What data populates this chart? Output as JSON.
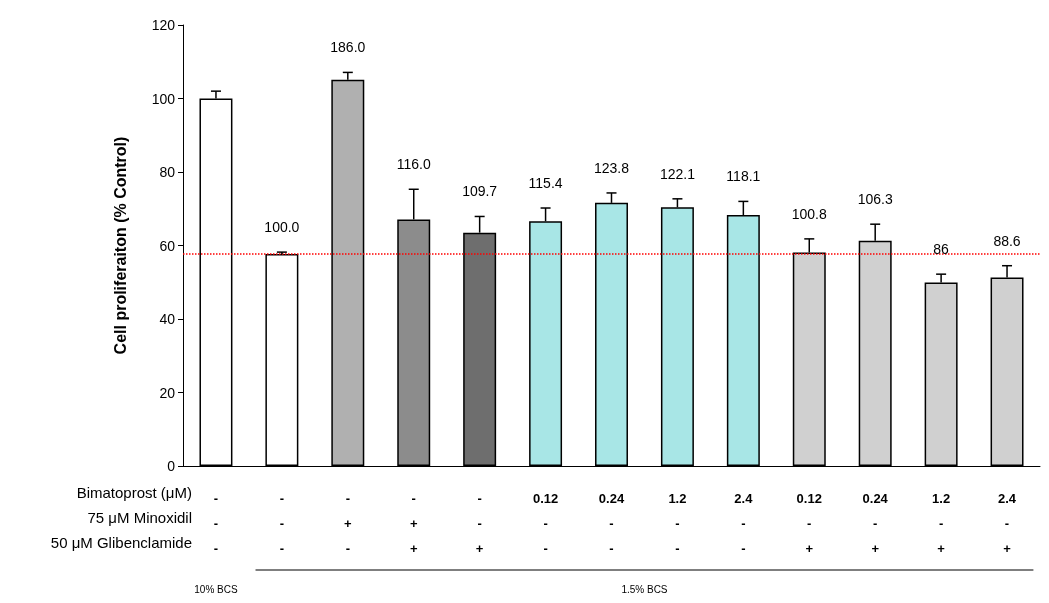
{
  "chart_data": {
    "type": "bar",
    "ylabel": "Cell proliferaiton (% Control)",
    "categories": [
      "-\n-\n-",
      "-\n-\n-",
      "-\n+\n-",
      "-\n+\n+",
      "-\n-\n+",
      "0.12\n-\n-",
      "0.24\n-\n-",
      "1.2\n-\n-",
      "2.4\n-\n-",
      "0.12\n-\n+",
      "0.24\n-\n+",
      "1.2\n-\n+",
      "2.4\n-\n+"
    ],
    "values": [
      100,
      57.7,
      105.1,
      67.1,
      63.5,
      66.6,
      71.6,
      70.4,
      68.3,
      58.1,
      61.3,
      49.9,
      51.3
    ],
    "errors": [
      2,
      0.5,
      2,
      8.2,
      4.4,
      3.6,
      2.7,
      2.3,
      3.7,
      3.7,
      4.5,
      2.3,
      3.2
    ],
    "colors": [
      "#ffffff",
      "#ffffff",
      "#b0b0b0",
      "#8c8c8c",
      "#6e6e6e",
      "#a8e6e6",
      "#a8e6e6",
      "#a8e6e6",
      "#a8e6e6",
      "#d0d0d0",
      "#d0d0d0",
      "#d0d0d0",
      "#d0d0d0"
    ],
    "ylim": [
      0,
      120
    ],
    "yticks": [
      0,
      20,
      40,
      60,
      80,
      100,
      120
    ],
    "grid": false,
    "ref_lines": [
      {
        "axis": "y",
        "value": 57.7,
        "label": null,
        "color": "#ff0000",
        "line_style": "dotted"
      }
    ],
    "annotations": [
      "Bimatoprost (μM)",
      "75 μM Minoxidil",
      "50 μM Glibenclamide",
      "10% BCS",
      "1.5% BCS",
      "100.0",
      "186.0",
      "116.0",
      "109.7",
      "115.4",
      "123.8",
      "122.1",
      "118.1",
      "100.8",
      "106.3",
      "86",
      "88.6"
    ]
  }
}
